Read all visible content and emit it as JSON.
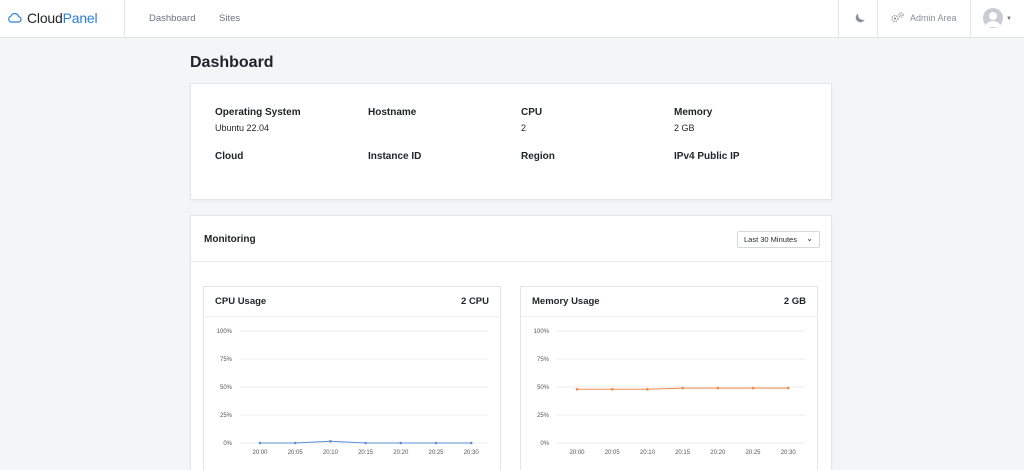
{
  "topbar": {
    "brand_a": "Cloud",
    "brand_b": "Panel",
    "nav": [
      "Dashboard",
      "Sites"
    ],
    "admin_label": "Admin Area"
  },
  "page": {
    "title": "Dashboard"
  },
  "info": {
    "os_label": "Operating System",
    "os_value": "Ubuntu 22.04",
    "hostname_label": "Hostname",
    "hostname_value": "",
    "cpu_label": "CPU",
    "cpu_value": "2",
    "memory_label": "Memory",
    "memory_value": "2 GB",
    "cloud_label": "Cloud",
    "instance_label": "Instance ID",
    "region_label": "Region",
    "ip_label": "IPv4 Public IP"
  },
  "monitoring": {
    "title": "Monitoring",
    "range_selected": "Last 30 Minutes"
  },
  "colors": {
    "accent": "#2e7fd8",
    "cpu_line": "#5b8fd6",
    "mem_line": "#f08a4b"
  },
  "chart_data": [
    {
      "type": "line",
      "title": "CPU Usage",
      "summary": "2 CPU",
      "x": [
        "20:00",
        "20:05",
        "20:10",
        "20:15",
        "20:20",
        "20:25",
        "20:30"
      ],
      "y_ticks": [
        "100%",
        "75%",
        "50%",
        "25%",
        "0%"
      ],
      "ylim": [
        0,
        100
      ],
      "series": [
        {
          "values": [
            0,
            0,
            1.5,
            0,
            0,
            0,
            0
          ],
          "color": "#5b8fd6"
        }
      ],
      "grid": true
    },
    {
      "type": "line",
      "title": "Memory Usage",
      "summary": "2 GB",
      "x": [
        "20:00",
        "20:05",
        "20:10",
        "20:15",
        "20:20",
        "20:25",
        "20:30"
      ],
      "y_ticks": [
        "100%",
        "75%",
        "50%",
        "25%",
        "0%"
      ],
      "ylim": [
        0,
        100
      ],
      "series": [
        {
          "values": [
            48,
            48,
            48,
            49,
            49,
            49,
            49
          ],
          "color": "#f08a4b"
        }
      ],
      "grid": true
    }
  ]
}
